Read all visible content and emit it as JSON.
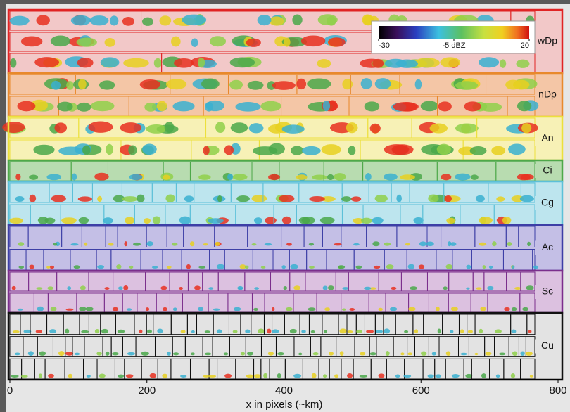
{
  "chart_data": {
    "type": "mosaic",
    "x_label": "x in pixels (~km)",
    "xlim": [
      0,
      800
    ],
    "xticks": [
      0,
      200,
      400,
      600,
      800
    ],
    "colorbar": {
      "lim": [
        -30,
        20
      ],
      "ticks": [
        -30,
        {
          "value": -5,
          "label": "-5 dBZ"
        },
        20
      ]
    },
    "classes": [
      {
        "name": "wDp",
        "color": "#e02424",
        "fill": "#f2c8c8"
      },
      {
        "name": "nDp",
        "color": "#e8892c",
        "fill": "#f4c6a6"
      },
      {
        "name": "An",
        "color": "#ece03c",
        "fill": "#f7f1b6"
      },
      {
        "name": "Ci",
        "color": "#4ea84a",
        "fill": "#b8dcb0"
      },
      {
        "name": "Cg",
        "color": "#5cc0d8",
        "fill": "#bde5ee"
      },
      {
        "name": "Ac",
        "color": "#3d3fa6",
        "fill": "#c4bfe6"
      },
      {
        "name": "Sc",
        "color": "#7b2f8c",
        "fill": "#dcc1e0"
      },
      {
        "name": "Cu",
        "color": "#111111",
        "fill": "#e3e3e3"
      }
    ]
  }
}
